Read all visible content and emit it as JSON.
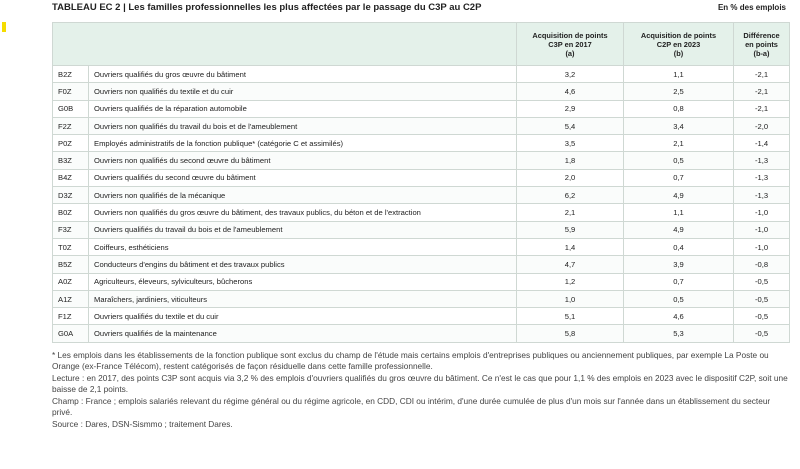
{
  "header": {
    "title": "TABLEAU EC 2 | Les familles professionnelles les plus affectées par le passage du C3P au C2P",
    "unit": "En % des emplois"
  },
  "table": {
    "columns": [
      [
        "Acquisition de points",
        "C3P en 2017",
        "(a)"
      ],
      [
        "Acquisition de points",
        "C2P en 2023",
        "(b)"
      ],
      [
        "Différence",
        "en points",
        "(b-a)"
      ]
    ],
    "rows": [
      [
        "B2Z",
        "Ouvriers qualifiés du gros œuvre du bâtiment",
        "3,2",
        "1,1",
        "-2,1"
      ],
      [
        "F0Z",
        "Ouvriers non qualifiés du textile et du cuir",
        "4,6",
        "2,5",
        "-2,1"
      ],
      [
        "G0B",
        "Ouvriers qualifiés de la réparation automobile",
        "2,9",
        "0,8",
        "-2,1"
      ],
      [
        "F2Z",
        "Ouvriers non qualifiés du travail du bois et de l'ameublement",
        "5,4",
        "3,4",
        "-2,0"
      ],
      [
        "P0Z",
        "Employés administratifs de la fonction publique* (catégorie C et assimilés)",
        "3,5",
        "2,1",
        "-1,4"
      ],
      [
        "B3Z",
        "Ouvriers non qualifiés du second œuvre du bâtiment",
        "1,8",
        "0,5",
        "-1,3"
      ],
      [
        "B4Z",
        "Ouvriers qualifiés du second œuvre du bâtiment",
        "2,0",
        "0,7",
        "-1,3"
      ],
      [
        "D3Z",
        "Ouvriers non qualifiés de la mécanique",
        "6,2",
        "4,9",
        "-1,3"
      ],
      [
        "B0Z",
        "Ouvriers non qualifiés du gros œuvre du bâtiment, des travaux publics, du béton et de l'extraction",
        "2,1",
        "1,1",
        "-1,0"
      ],
      [
        "F3Z",
        "Ouvriers qualifiés du travail du bois et de l'ameublement",
        "5,9",
        "4,9",
        "-1,0"
      ],
      [
        "T0Z",
        "Coiffeurs, esthéticiens",
        "1,4",
        "0,4",
        "-1,0"
      ],
      [
        "B5Z",
        "Conducteurs d'engins du bâtiment et des travaux publics",
        "4,7",
        "3,9",
        "-0,8"
      ],
      [
        "A0Z",
        "Agriculteurs, éleveurs, sylviculteurs, bûcherons",
        "1,2",
        "0,7",
        "-0,5"
      ],
      [
        "A1Z",
        "Maraîchers, jardiniers, viticulteurs",
        "1,0",
        "0,5",
        "-0,5"
      ],
      [
        "F1Z",
        "Ouvriers qualifiés du textile et du cuir",
        "5,1",
        "4,6",
        "-0,5"
      ],
      [
        "G0A",
        "Ouvriers qualifiés de la maintenance",
        "5,8",
        "5,3",
        "-0,5"
      ]
    ]
  },
  "notes": [
    "* Les emplois dans les établissements de la fonction publique sont exclus du champ de l'étude mais certains emplois d'entreprises publiques ou anciennement publiques, par exemple La Poste ou Orange (ex-France Télécom), restent catégorisés de façon résiduelle dans cette famille professionnelle.",
    "Lecture : en 2017, des points C3P sont acquis via 3,2 % des emplois d'ouvriers qualifiés du gros œuvre du bâtiment. Ce n'est le cas que pour 1,1 % des emplois en 2023 avec le dispositif C2P, soit une baisse de 2,1 points.",
    "Champ : France ; emplois salariés relevant du régime général ou du régime agricole, en CDD, CDI ou intérim, d'une durée cumulée de plus d'un mois sur l'année dans un établissement du secteur privé.",
    "Source : Dares, DSN-Sismmo ; traitement Dares."
  ]
}
